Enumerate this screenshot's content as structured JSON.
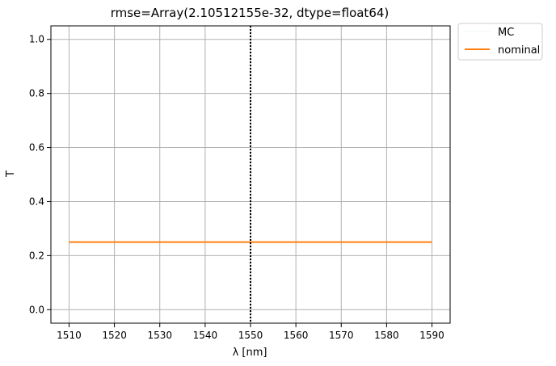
{
  "chart_data": {
    "type": "line",
    "title": "rmse=Array(2.10512155e-32, dtype=float64)",
    "xlabel": "λ [nm]",
    "ylabel": "T",
    "xlim": [
      1506,
      1594
    ],
    "ylim": [
      -0.05,
      1.05
    ],
    "xticks": [
      1510,
      1520,
      1530,
      1540,
      1550,
      1560,
      1570,
      1580,
      1590
    ],
    "yticks": [
      0.0,
      0.2,
      0.4,
      0.6,
      0.8,
      1.0
    ],
    "xtick_labels": [
      "1510",
      "1520",
      "1530",
      "1540",
      "1550",
      "1560",
      "1570",
      "1580",
      "1590"
    ],
    "ytick_labels": [
      "0.0",
      "0.2",
      "0.4",
      "0.6",
      "0.8",
      "1.0"
    ],
    "grid": true,
    "legend_position": "outside-top-right",
    "series": [
      {
        "name": "MC",
        "color": "#1f77b4",
        "opacity": 0.1,
        "line_width": 0.8,
        "x": [
          1510,
          1590
        ],
        "y": [
          0.25,
          0.25
        ]
      },
      {
        "name": "nominal",
        "color": "#ff7f0e",
        "opacity": 1.0,
        "line_width": 2,
        "x": [
          1510,
          1590
        ],
        "y": [
          0.25,
          0.25
        ]
      }
    ],
    "vlines": [
      {
        "x": 1550,
        "style": "dotted",
        "color": "#000000"
      }
    ]
  }
}
